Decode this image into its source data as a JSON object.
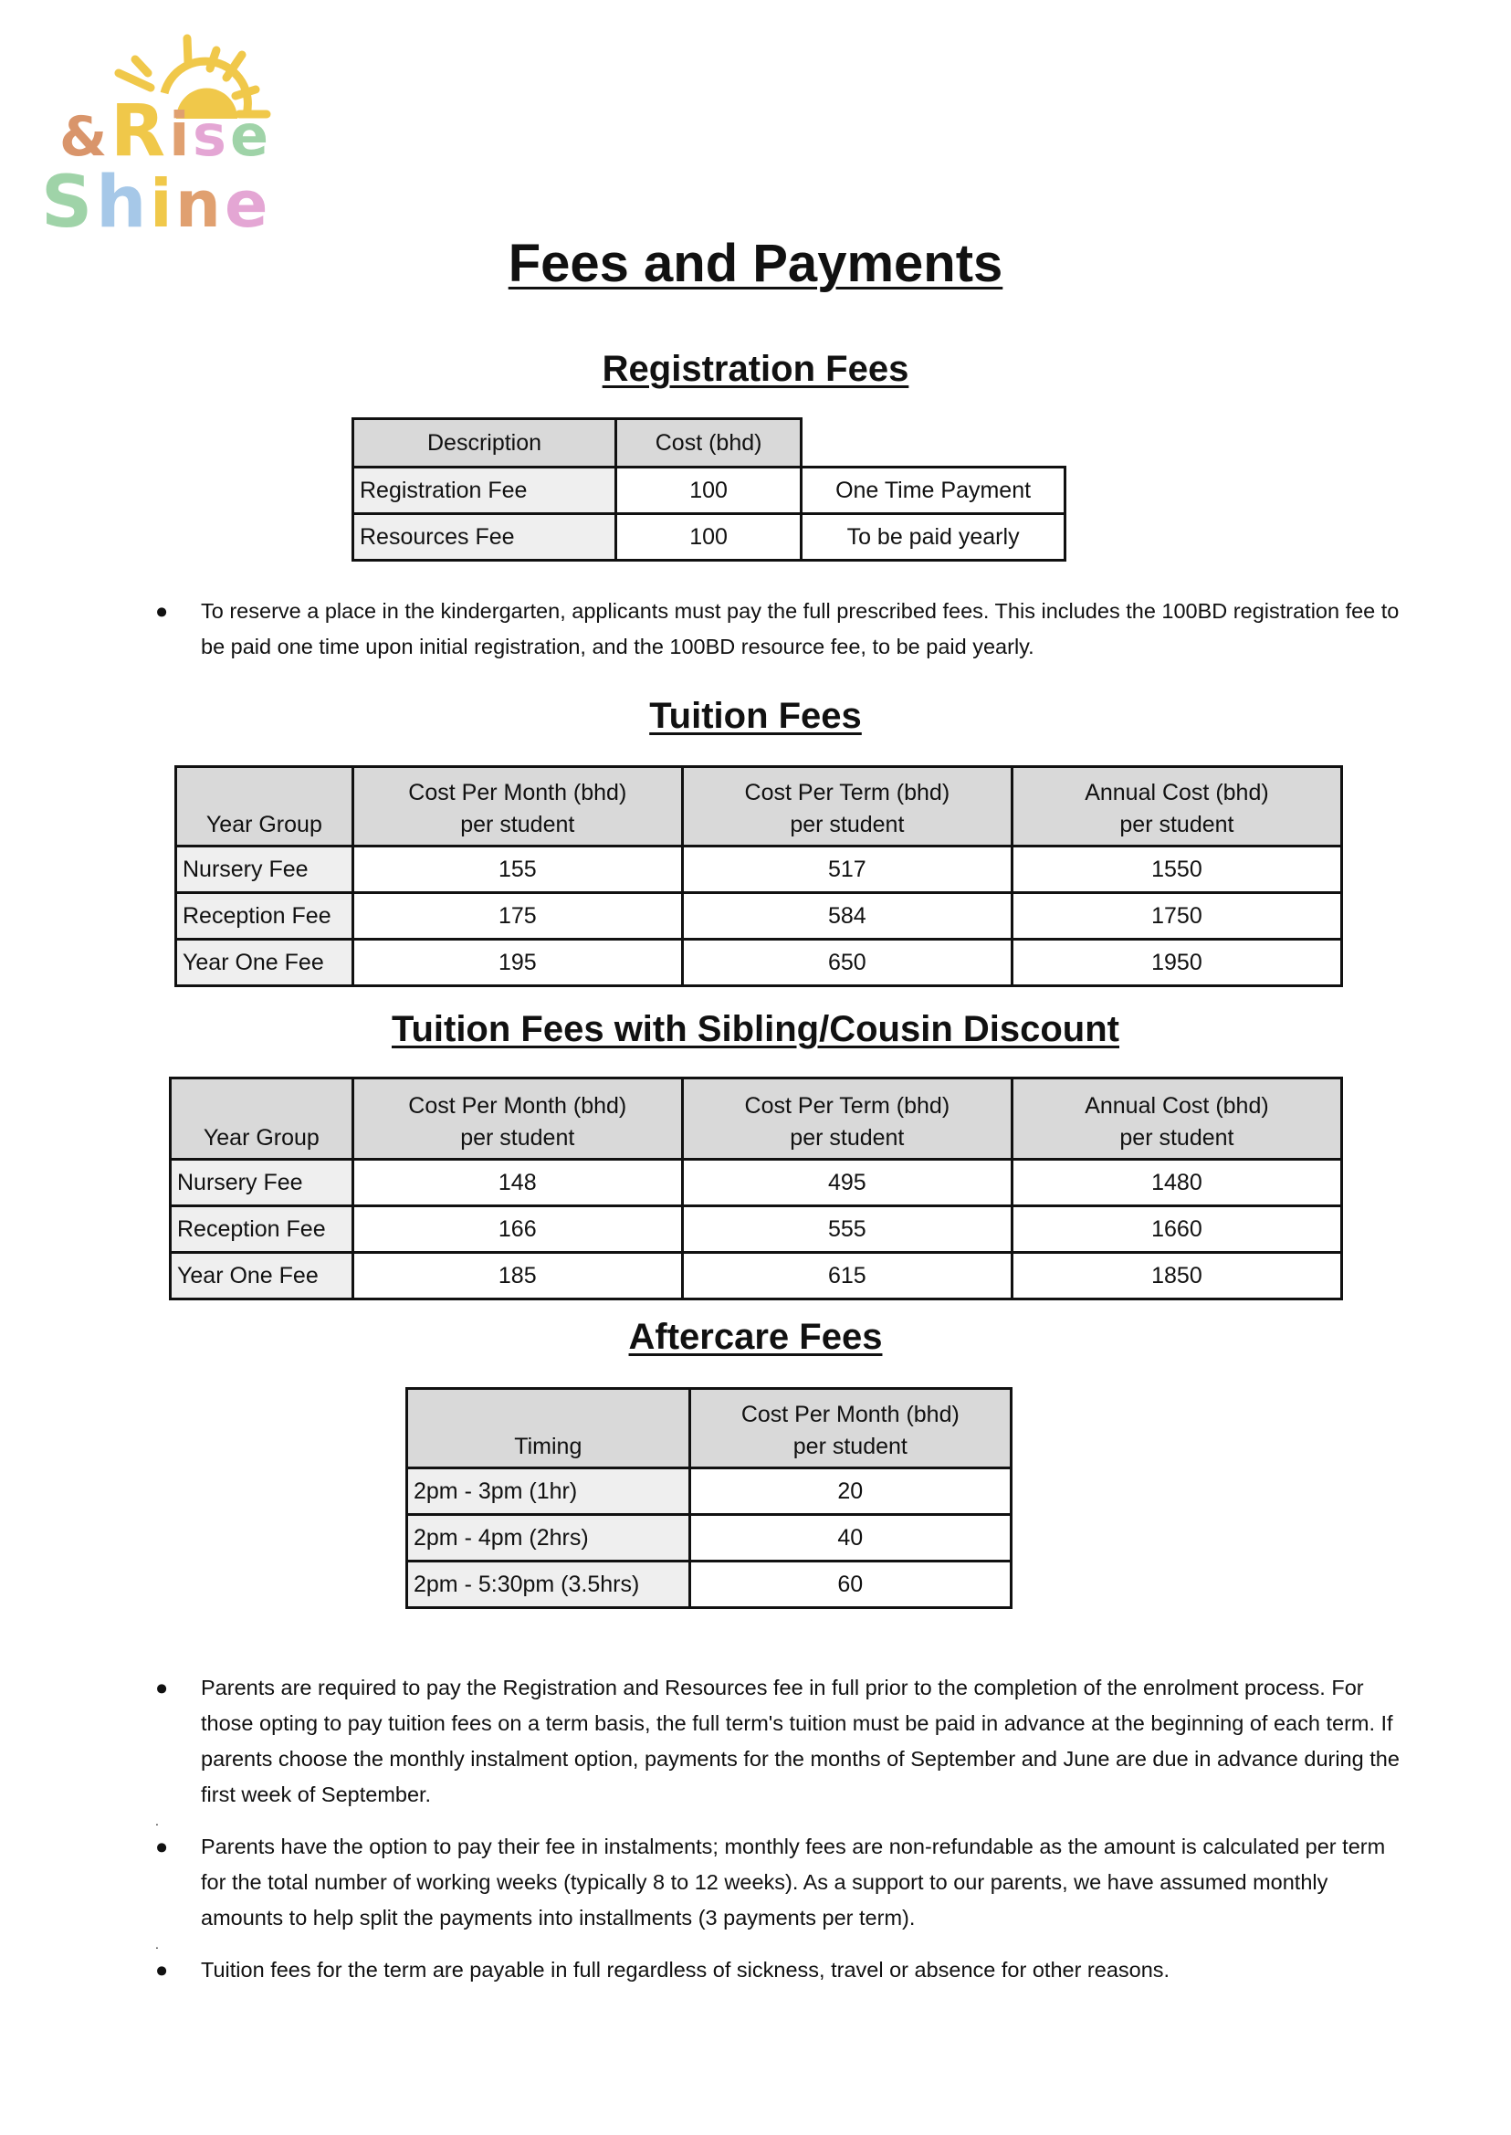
{
  "logo": {
    "text": "& Rise Shine",
    "colors": {
      "sun": "#f0c84a",
      "ampersand": "#d9956b",
      "green": "#9fd3a8",
      "blue": "#a6c8e8",
      "pink": "#e4a6d4",
      "orange": "#e0a070"
    }
  },
  "title": "Fees and Payments",
  "registration": {
    "heading": "Registration Fees",
    "headers": [
      "Description",
      "Cost (bhd)"
    ],
    "rows": [
      [
        "Registration Fee",
        "100",
        "One Time Payment"
      ],
      [
        "Resources Fee",
        "100",
        "To be paid yearly"
      ]
    ],
    "note": "To reserve a place in the kindergarten, applicants must pay the full prescribed fees. This includes the 100BD registration fee to be paid one time upon initial registration, and the 100BD resource fee, to be paid yearly."
  },
  "tuition": {
    "heading": "Tuition Fees",
    "headers": [
      "Year Group",
      "Cost Per Month (bhd)",
      "Cost Per Term (bhd)",
      "Annual Cost (bhd)"
    ],
    "subheader": "per student",
    "rows": [
      [
        "Nursery Fee",
        "155",
        "517",
        "1550"
      ],
      [
        "Reception Fee",
        "175",
        "584",
        "1750"
      ],
      [
        "Year One Fee",
        "195",
        "650",
        "1950"
      ]
    ]
  },
  "sibling": {
    "heading": "Tuition Fees with Sibling/Cousin Discount",
    "headers": [
      "Year Group",
      "Cost Per Month (bhd)",
      "Cost Per Term (bhd)",
      "Annual Cost (bhd)"
    ],
    "subheader": "per student",
    "rows": [
      [
        "Nursery Fee",
        "148",
        "495",
        "1480"
      ],
      [
        "Reception Fee",
        "166",
        "555",
        "1660"
      ],
      [
        "Year One Fee",
        "185",
        "615",
        "1850"
      ]
    ]
  },
  "aftercare": {
    "heading": "Aftercare Fees",
    "headers": [
      "Timing",
      "Cost Per Month (bhd)"
    ],
    "subheader": "per student",
    "rows": [
      [
        "2pm - 3pm (1hr)",
        "20"
      ],
      [
        "2pm - 4pm (2hrs)",
        "40"
      ],
      [
        "2pm - 5:30pm (3.5hrs)",
        "60"
      ]
    ]
  },
  "bullet_glyph": "●",
  "separator": ".",
  "notes": [
    "Parents are required to pay the Registration and Resources fee in full prior to the completion of the enrolment process. For those opting to pay tuition fees on a term basis, the full term's tuition must be paid in advance at the beginning of each term. If parents choose the monthly instalment option, payments for the months of September and June are due in advance during the first week of September.",
    "Parents have the option to pay their fee in instalments; monthly fees are non-refundable as the amount is calculated per term for the total number of working weeks (typically 8 to 12 weeks). As a support to our parents, we have assumed monthly amounts to help split the payments into installments (3 payments per term).",
    "Tuition fees for the term are payable in full regardless of sickness, travel or absence for other reasons."
  ]
}
